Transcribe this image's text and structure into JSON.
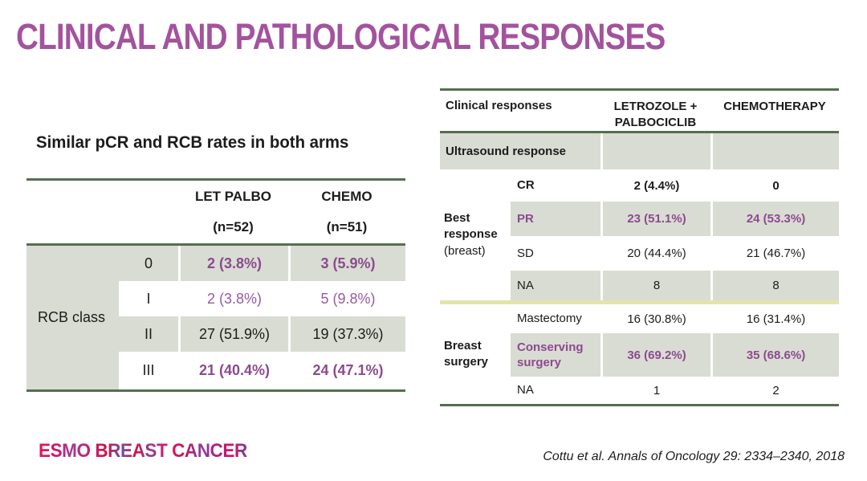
{
  "slide": {
    "title": "CLINICAL AND PATHOLOGICAL RESPONSES",
    "logo": "ESMO BREAST CANCER",
    "citation": "Cottu et al. Annals of Oncology 29: 2334–2340, 2018"
  },
  "colors": {
    "title_purple": "#a3539e",
    "table_purple_bold": "#8c4a90",
    "table_purple_light": "#9859a3",
    "row_gray": "#d9dcd2",
    "line_green": "#566e50",
    "divider_yellow": "#e2e5aa"
  },
  "left_table": {
    "subtitle": "Similar pCR and RCB rates in both arms",
    "col_headers": [
      {
        "line1": "LET PALBO",
        "line2": "(n=52)"
      },
      {
        "line1": "CHEMO",
        "line2": "(n=51)"
      }
    ],
    "row_group": "RCB class",
    "rows": [
      {
        "label": "0",
        "values": [
          "2 (3.8%)",
          "3 (5.9%)"
        ]
      },
      {
        "label": "I",
        "values": [
          "2 (3.8%)",
          "5 (9.8%)"
        ]
      },
      {
        "label": "II",
        "values": [
          "27 (51.9%)",
          "19 (37.3%)"
        ]
      },
      {
        "label": "III",
        "values": [
          "21 (40.4%)",
          "24 (47.1%)"
        ]
      }
    ]
  },
  "right_table": {
    "header": {
      "col1": "Clinical responses",
      "col2_line1": "LETROZOLE +",
      "col2_line2": "PALBOCICLIB",
      "col3": "CHEMOTHERAPY"
    },
    "section_row": "Ultrasound response",
    "groups": [
      {
        "label": "Best response",
        "note": "(breast)",
        "rows": [
          {
            "label": "CR",
            "values": [
              "2 (4.4%)",
              "0"
            ]
          },
          {
            "label": "PR",
            "values": [
              "23 (51.1%)",
              "24 (53.3%)"
            ]
          },
          {
            "label": "SD",
            "values": [
              "20 (44.4%)",
              "21 (46.7%)"
            ]
          },
          {
            "label": "NA",
            "values": [
              "8",
              "8"
            ]
          }
        ]
      },
      {
        "label": "Breast surgery",
        "rows": [
          {
            "label": "Mastectomy",
            "values": [
              "16 (30.8%)",
              "16 (31.4%)"
            ]
          },
          {
            "label": "Conserving surgery",
            "values": [
              "36 (69.2%)",
              "35 (68.6%)"
            ]
          },
          {
            "label": "NA",
            "values": [
              "1",
              "2"
            ]
          }
        ]
      }
    ]
  }
}
